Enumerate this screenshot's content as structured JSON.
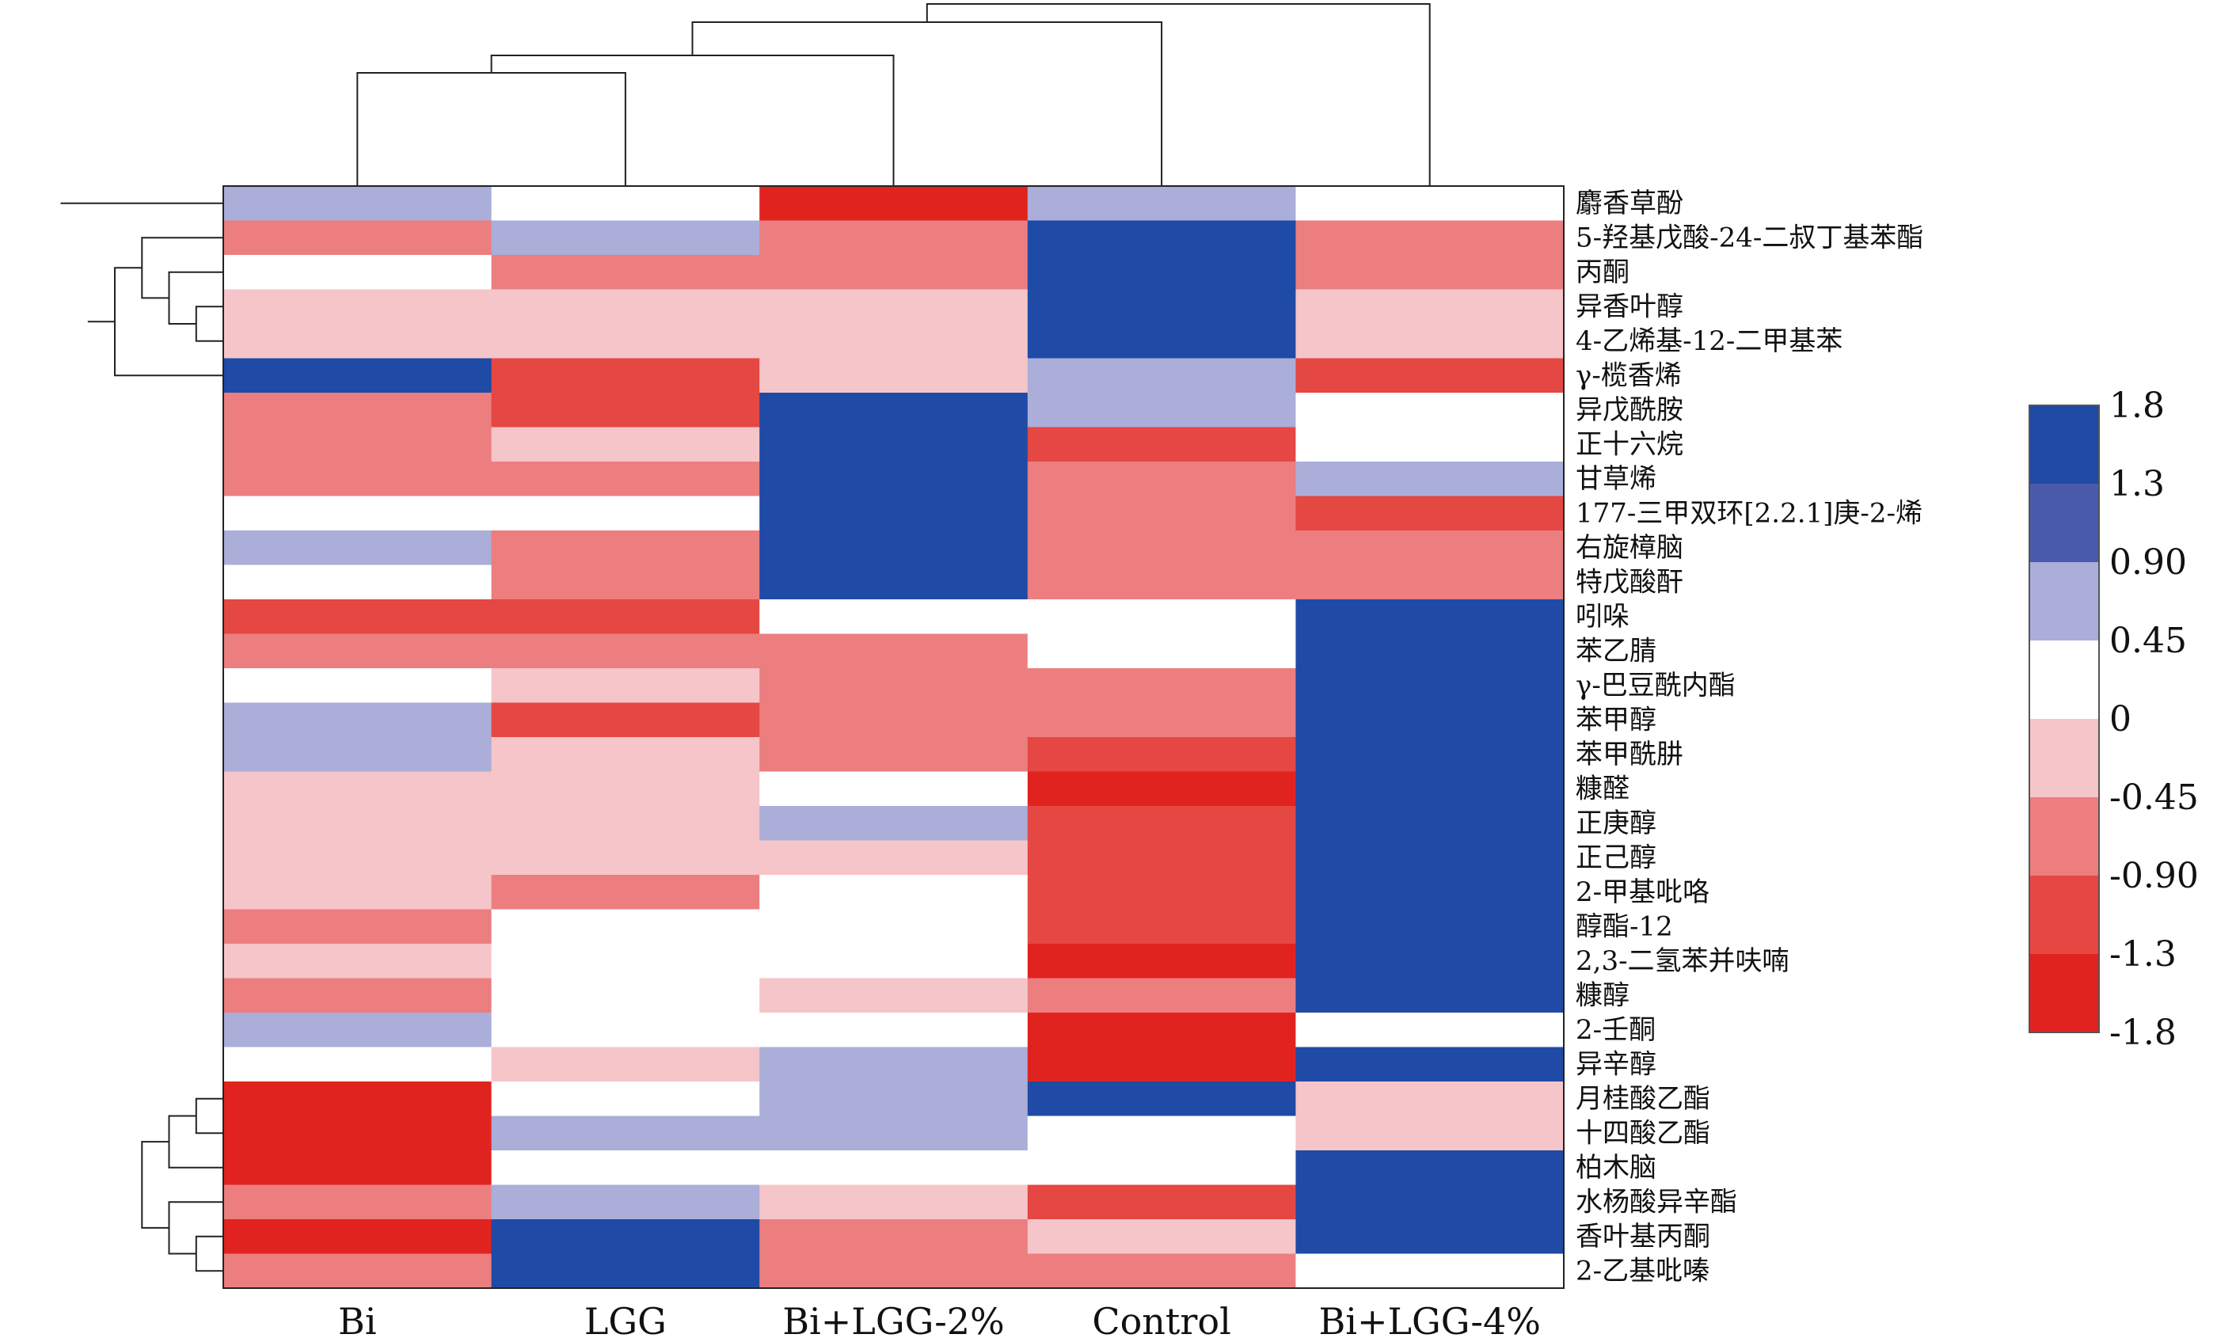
{
  "chart_data": {
    "type": "heatmap",
    "columns": [
      "Bi",
      "LGG",
      "Bi+LGG-2%",
      "Control",
      "Bi+LGG-4%"
    ],
    "rows": [
      "麝香草酚",
      "5-羟基戊酸-24-二叔丁基苯酯",
      "丙酮",
      "异香叶醇",
      "4-乙烯基-12-二甲基苯",
      "γ-榄香烯",
      "异戊酰胺",
      "正十六烷",
      "甘草烯",
      "177-三甲双环[2.2.1]庚-2-烯",
      "右旋樟脑",
      "特戊酸酐",
      "吲哚",
      "苯乙腈",
      "γ-巴豆酰内酯",
      "苯甲醇",
      "苯甲酰肼",
      "糠醛",
      "正庚醇",
      "正己醇",
      "2-甲基吡咯",
      "醇酯-12",
      "2,3-二氢苯并呋喃",
      "糠醇",
      "2-壬酮",
      "异辛醇",
      "月桂酸乙酯",
      "十四酸乙酯",
      "柏木脑",
      "水杨酸异辛酯",
      "香叶基丙酮",
      "2-乙基吡嗪"
    ],
    "values": [
      [
        0.7,
        0.2,
        -1.8,
        0.7,
        0.2
      ],
      [
        -0.9,
        0.7,
        -0.9,
        1.8,
        -0.9
      ],
      [
        0.2,
        -0.9,
        -0.9,
        1.8,
        -0.9
      ],
      [
        -0.45,
        -0.45,
        -0.45,
        1.8,
        -0.45
      ],
      [
        -0.45,
        -0.45,
        -0.45,
        1.8,
        -0.45
      ],
      [
        1.5,
        -1.3,
        -0.45,
        0.7,
        -1.3
      ],
      [
        -0.9,
        -1.3,
        1.5,
        0.7,
        0.2
      ],
      [
        -0.9,
        -0.45,
        1.8,
        -1.3,
        0.2
      ],
      [
        -0.9,
        -0.9,
        1.8,
        -0.9,
        0.7
      ],
      [
        0.2,
        0.2,
        1.8,
        -0.9,
        -1.3
      ],
      [
        0.7,
        -0.9,
        1.8,
        -0.9,
        -0.9
      ],
      [
        0.2,
        -0.9,
        1.8,
        -0.9,
        -0.9
      ],
      [
        -1.3,
        -1.3,
        0.2,
        0.2,
        1.8
      ],
      [
        -0.9,
        -0.9,
        -0.9,
        0.2,
        1.8
      ],
      [
        0.2,
        -0.45,
        -0.9,
        -0.9,
        1.8
      ],
      [
        0.7,
        -1.3,
        -0.9,
        -0.9,
        1.8
      ],
      [
        0.7,
        -0.45,
        -0.9,
        -1.3,
        1.5
      ],
      [
        -0.45,
        -0.45,
        0.2,
        -1.8,
        1.8
      ],
      [
        -0.45,
        -0.45,
        0.7,
        -1.3,
        1.5
      ],
      [
        -0.45,
        -0.45,
        -0.45,
        -1.3,
        1.8
      ],
      [
        -0.45,
        -0.9,
        0.2,
        -1.3,
        1.8
      ],
      [
        -0.9,
        0.2,
        0.2,
        -1.3,
        1.8
      ],
      [
        -0.45,
        0.2,
        0.2,
        -1.8,
        1.8
      ],
      [
        -0.9,
        0.2,
        -0.45,
        -0.9,
        1.8
      ],
      [
        0.7,
        0.2,
        0.2,
        -1.8,
        0.2
      ],
      [
        0.2,
        -0.45,
        0.7,
        -1.8,
        1.5
      ],
      [
        -1.8,
        0.2,
        0.7,
        1.5,
        -0.45
      ],
      [
        -1.8,
        0.7,
        0.7,
        0.2,
        -0.45
      ],
      [
        -1.8,
        0.2,
        0.2,
        0.2,
        1.5
      ],
      [
        -0.9,
        0.7,
        -0.45,
        -1.3,
        1.5
      ],
      [
        -1.8,
        1.5,
        -0.9,
        -0.45,
        1.5
      ],
      [
        -0.9,
        1.8,
        -0.9,
        -0.9,
        0.2
      ]
    ],
    "colorbar": {
      "ticks": [
        "1.8",
        "1.3",
        "0.90",
        "0.45",
        "0",
        "-0.45",
        "-0.90",
        "-1.3",
        "-1.8"
      ],
      "bins": [
        {
          "min": 1.3,
          "max": 1.8,
          "color": "#1f4aa6"
        },
        {
          "min": 0.9,
          "max": 1.3,
          "color": "#4a5aab"
        },
        {
          "min": 0.45,
          "max": 0.9,
          "color": "#aaaed8"
        },
        {
          "min": 0,
          "max": 0.45,
          "color": "#ffffff"
        },
        {
          "min": -0.45,
          "max": 0,
          "color": "#f5c5c9"
        },
        {
          "min": -0.9,
          "max": -0.45,
          "color": "#ec7e80"
        },
        {
          "min": -1.3,
          "max": -0.9,
          "color": "#e54743"
        },
        {
          "min": -1.8,
          "max": -1.3,
          "color": "#e1231f"
        }
      ]
    },
    "column_dendrogram": true,
    "row_dendrogram": true
  }
}
